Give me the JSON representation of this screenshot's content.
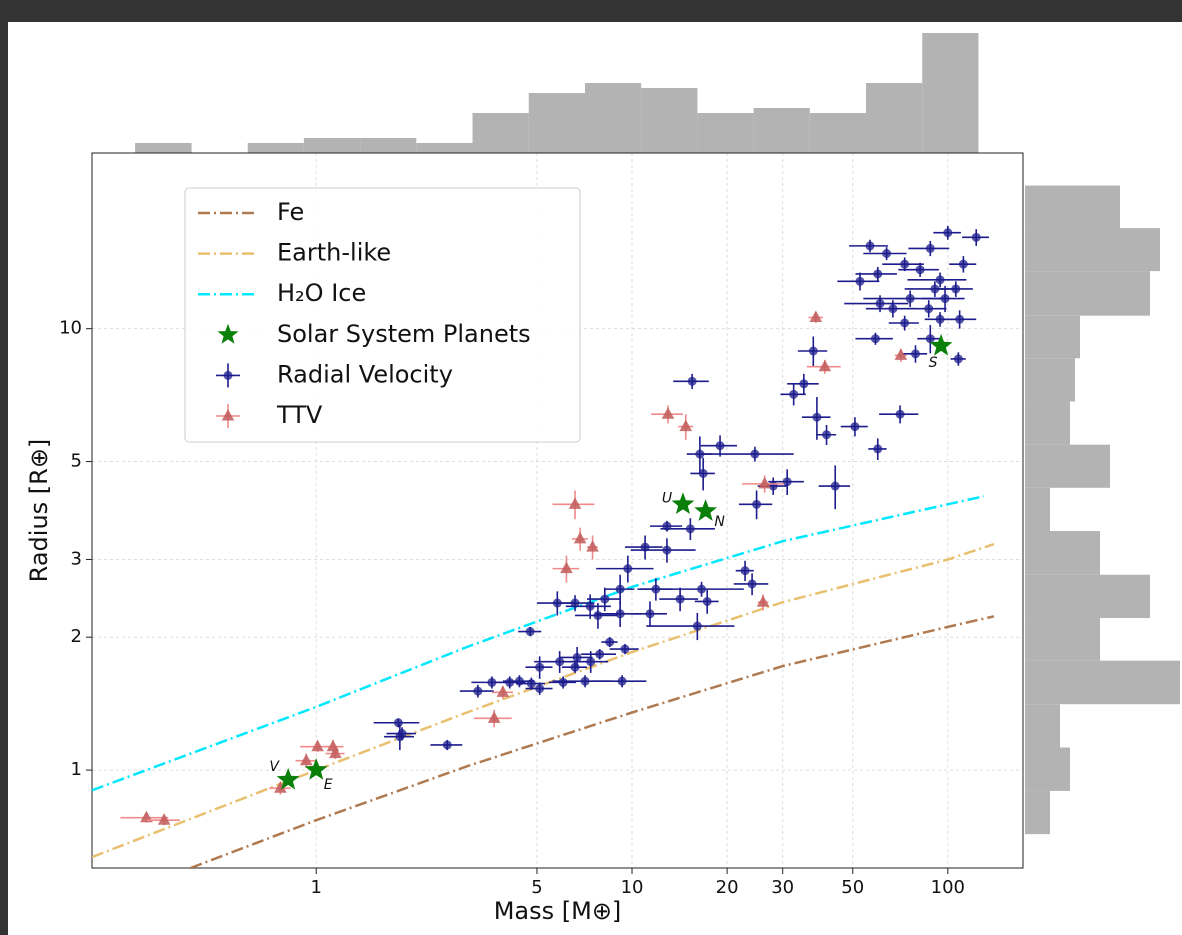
{
  "chart_data": [
    {
      "type": "scatter",
      "xlabel": "Mass [M⊕]",
      "ylabel": "Radius [R⊕]",
      "log_x": true,
      "log_y": true,
      "grid": true,
      "legend": "upper left",
      "xlim": [
        0.195,
        173
      ],
      "ylim": [
        0.6,
        25
      ],
      "xticks": [
        1,
        5,
        10,
        20,
        30,
        50,
        100
      ],
      "yticks": [
        1,
        2,
        3,
        5,
        10
      ],
      "series": [
        {
          "name": "Fe",
          "kind": "line",
          "color": "#b07a50",
          "x": [
            0.4,
            1,
            3,
            10,
            30,
            100,
            140
          ],
          "values": [
            0.6,
            0.77,
            1.02,
            1.35,
            1.72,
            2.11,
            2.23
          ]
        },
        {
          "name": "Earth-like",
          "kind": "line",
          "color": "#e8c070",
          "x": [
            0.195,
            1,
            3,
            10,
            30,
            100,
            140
          ],
          "values": [
            0.635,
            1.0,
            1.35,
            1.85,
            2.4,
            3.0,
            3.25
          ]
        },
        {
          "name": "H₂O Ice",
          "kind": "line",
          "color": "#00e8ff",
          "x": [
            0.195,
            1,
            3,
            10,
            30,
            100,
            130
          ],
          "values": [
            0.9,
            1.39,
            1.9,
            2.6,
            3.3,
            4.0,
            4.17
          ]
        },
        {
          "name": "Solar System Planets",
          "kind": "star",
          "color": "#0a800a",
          "x": [
            0.815,
            1,
            14.5,
            17.1,
            95.2
          ],
          "values": [
            0.95,
            1,
            4.0,
            3.86,
            9.14
          ],
          "labels": [
            "V",
            "E",
            "U",
            "N",
            "S"
          ]
        },
        {
          "name": "Radial Velocity",
          "kind": "errorbar",
          "marker": "circle",
          "color": "#1c1c8c",
          "x": [
            56.7,
            64,
            52.7,
            60,
            73,
            81.7,
            88,
            100,
            123,
            112,
            94.5,
            91,
            98,
            106,
            87,
            76,
            67,
            73,
            94.5,
            109,
            61,
            59,
            79,
            88,
            108,
            37.5,
            35,
            32.5,
            38.5,
            41.3,
            44,
            50.8,
            60,
            70.6,
            15.5,
            19,
            16.4,
            16.8,
            24.5,
            31,
            28,
            24.8,
            12.9,
            15.3,
            11,
            12.9,
            9.7,
            9.17,
            8.2,
            7.37,
            6.6,
            5.8,
            11.9,
            14.2,
            16.6,
            17.3,
            22.8,
            24,
            11.4,
            16.1,
            9.17,
            7.8,
            4.76,
            8.5,
            9.5,
            7.9,
            6.7,
            5.9,
            7.4,
            5.1,
            4.4,
            4.8,
            4.1,
            5.1,
            3.6,
            3.25,
            6.6,
            7.1,
            9.3,
            6.05,
            1.82,
            1.84,
            2.6,
            1.87
          ],
          "values": [
            15.4,
            14.8,
            12.8,
            13.3,
            14.0,
            13.6,
            15.2,
            16.5,
            16.1,
            14.0,
            12.9,
            12.3,
            11.7,
            12.3,
            11.1,
            11.7,
            11.1,
            10.3,
            10.5,
            10.5,
            11.4,
            9.49,
            8.77,
            9.49,
            8.54,
            8.9,
            7.5,
            7.1,
            6.3,
            5.75,
            4.4,
            6.0,
            5.34,
            6.4,
            7.6,
            5.43,
            5.2,
            4.7,
            5.2,
            4.5,
            4.4,
            4.0,
            3.57,
            3.52,
            3.2,
            3.15,
            2.86,
            2.57,
            2.44,
            2.35,
            2.39,
            2.39,
            2.57,
            2.44,
            2.57,
            2.41,
            2.83,
            2.64,
            2.26,
            2.12,
            2.26,
            2.24,
            2.06,
            1.95,
            1.88,
            1.83,
            1.8,
            1.76,
            1.76,
            1.71,
            1.59,
            1.57,
            1.58,
            1.53,
            1.58,
            1.51,
            1.71,
            1.59,
            1.59,
            1.58,
            1.28,
            1.19,
            1.14,
            1.21
          ],
          "xerr": [
            8,
            10,
            8,
            9,
            11,
            12,
            13,
            10,
            12,
            11,
            20,
            18,
            15,
            14,
            12,
            22,
            12,
            8,
            10,
            14,
            14,
            8,
            7,
            8,
            6,
            4,
            4,
            3,
            4,
            3,
            5,
            5,
            4,
            10,
            2,
            2.5,
            1.5,
            1.5,
            8,
            4,
            3,
            3,
            1.5,
            3,
            1.5,
            3,
            2,
            1,
            1,
            1.2,
            1,
            0.8,
            1.5,
            2,
            6,
            1.5,
            1.5,
            3,
            1.5,
            5,
            1.5,
            1.2,
            0.4,
            0.5,
            1,
            1,
            0.8,
            1,
            1,
            0.5,
            0.5,
            0.5,
            0.5,
            0.5,
            0.5,
            0.4,
            0.6,
            1.5,
            1.8,
            0.6,
            0.3,
            0.2,
            0.3,
            0.2
          ],
          "yerr": [
            0.5,
            0.5,
            0.6,
            0.5,
            0.5,
            0.5,
            0.6,
            0.6,
            0.7,
            0.6,
            0.5,
            0.5,
            0.8,
            0.5,
            0.5,
            0.5,
            0.5,
            0.4,
            0.4,
            0.5,
            0.5,
            0.3,
            0.4,
            0.7,
            0.3,
            0.7,
            0.4,
            0.4,
            0.7,
            0.3,
            0.5,
            0.3,
            0.3,
            0.3,
            0.3,
            0.3,
            0.5,
            0.4,
            0.2,
            0.3,
            0.2,
            0.3,
            0.1,
            0.2,
            0.2,
            0.2,
            0.2,
            0.2,
            0.15,
            0.15,
            0.1,
            0.15,
            0.15,
            0.15,
            0.1,
            0.15,
            0.15,
            0.15,
            0.15,
            0.15,
            0.15,
            0.15,
            0.05,
            0.05,
            0.05,
            0.05,
            0.1,
            0.1,
            0.1,
            0.1,
            0.05,
            0.05,
            0.05,
            0.05,
            0.05,
            0.05,
            0.05,
            0.05,
            0.05,
            0.05,
            0.03,
            0.08,
            0.03,
            0.04
          ]
        },
        {
          "name": "TTV",
          "kind": "errorbar",
          "marker": "triangle",
          "color": "#c25a5a",
          "x": [
            0.29,
            0.33,
            0.77,
            0.93,
            1.01,
            1.13,
            1.15,
            3.66,
            3.9,
            6.2,
            6.6,
            6.85,
            7.5,
            13,
            14.8,
            26.3,
            26,
            38.2,
            40.8,
            71
          ],
          "values": [
            0.78,
            0.77,
            0.91,
            1.05,
            1.13,
            1.13,
            1.09,
            1.31,
            1.5,
            2.86,
            4.0,
            3.34,
            3.2,
            6.4,
            6.0,
            4.45,
            2.4,
            10.6,
            8.2,
            8.7
          ],
          "xerr": [
            0.05,
            0.04,
            0.06,
            0.07,
            0.12,
            0.09,
            0.08,
            0.5,
            0.3,
            0.6,
            1.0,
            0.4,
            0.3,
            1.5,
            0.8,
            4,
            1,
            2,
            5,
            3
          ],
          "yerr": [
            0.02,
            0.02,
            0.03,
            0.04,
            0.03,
            0.04,
            0.03,
            0.06,
            0.05,
            0.2,
            0.3,
            0.2,
            0.2,
            0.3,
            0.4,
            0.2,
            0.1,
            0.3,
            0.3,
            0.3
          ]
        }
      ]
    },
    {
      "type": "histogram",
      "orientation": "vertical",
      "color": "#b3b3b3",
      "bins": [
        0.267,
        0.403,
        0.607,
        0.914,
        1.377,
        2.075,
        3.126,
        4.71,
        7.096,
        10.69,
        16.11,
        24.27,
        36.56,
        55.08,
        82.99,
        125.0
      ],
      "values": [
        2,
        0,
        2,
        3,
        3,
        2,
        8,
        12,
        14,
        13,
        8,
        9,
        8,
        14,
        24
      ]
    },
    {
      "type": "histogram",
      "orientation": "horizontal",
      "color": "#b3b3b3",
      "bins": [
        0.716,
        0.897,
        1.125,
        1.41,
        1.77,
        2.21,
        2.77,
        3.48,
        4.36,
        5.46,
        6.84,
        8.57,
        10.7,
        13.5,
        16.9,
        21.1
      ],
      "values": [
        5,
        9,
        7,
        31,
        15,
        25,
        15,
        5,
        17,
        9,
        10,
        11,
        25,
        27,
        19
      ]
    }
  ]
}
